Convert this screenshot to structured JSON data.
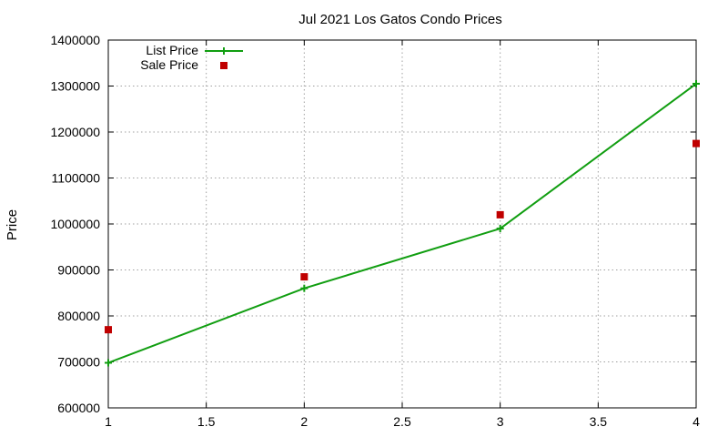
{
  "chart_data": {
    "type": "line",
    "title": "Jul 2021 Los Gatos Condo Prices",
    "xlabel": "",
    "ylabel": "Price",
    "xlim": [
      1,
      4
    ],
    "ylim": [
      600000,
      1400000
    ],
    "x_ticks": [
      "1",
      "1.5",
      "2",
      "2.5",
      "3",
      "3.5",
      "4"
    ],
    "x_tick_values": [
      1,
      1.5,
      2,
      2.5,
      3,
      3.5,
      4
    ],
    "y_ticks": [
      "600000",
      "700000",
      "800000",
      "900000",
      "1000000",
      "1100000",
      "1200000",
      "1300000",
      "1400000"
    ],
    "y_tick_values": [
      600000,
      700000,
      800000,
      900000,
      1000000,
      1100000,
      1200000,
      1300000,
      1400000
    ],
    "grid": true,
    "legend_position": "top-left",
    "series": [
      {
        "name": "List Price",
        "style": "line-with-plus-markers",
        "color": "#119e11",
        "x": [
          1,
          2,
          3,
          4
        ],
        "y": [
          698000,
          860000,
          990000,
          1305000
        ]
      },
      {
        "name": "Sale Price",
        "style": "square-markers",
        "color": "#c00000",
        "x": [
          1,
          2,
          3,
          4
        ],
        "y": [
          770000,
          885000,
          1020000,
          1175000
        ]
      }
    ]
  }
}
